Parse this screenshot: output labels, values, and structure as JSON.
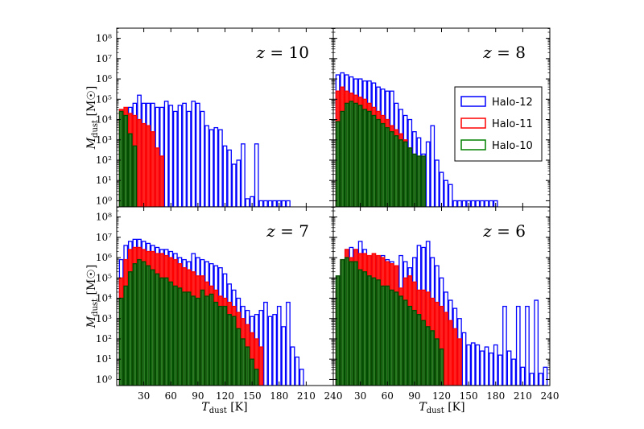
{
  "chart_data": {
    "type": "bar",
    "x_axis_label": "T_dust [K]",
    "y_axis_label": "M_dust [M☉]",
    "x_ticks": [
      "30",
      "60",
      "90",
      "120",
      "150",
      "180",
      "210",
      "240"
    ],
    "x_tick_values": [
      30,
      60,
      90,
      120,
      150,
      180,
      210,
      240
    ],
    "y_ticks": [
      "10⁰",
      "10¹",
      "10²",
      "10³",
      "10⁴",
      "10⁵",
      "10⁶",
      "10⁷",
      "10⁸"
    ],
    "y_scale": "log",
    "xlim": [
      0,
      240
    ],
    "ylim_log10": [
      -0.3,
      8.5
    ],
    "bin_width": 5,
    "legend": {
      "location": "right of upper-right panel",
      "entries": [
        {
          "name": "Halo-12",
          "color": "#0000ff"
        },
        {
          "name": "Halo-11",
          "color": "#ff0000"
        },
        {
          "name": "Halo-10",
          "color": "#008000"
        }
      ]
    },
    "panels": [
      {
        "label": "z = 10",
        "series": [
          {
            "name": "Halo-12",
            "color": "#0000ff",
            "x": [
              5,
              10,
              15,
              20,
              25,
              30,
              35,
              40,
              45,
              50,
              55,
              60,
              65,
              70,
              75,
              80,
              85,
              90,
              95,
              100,
              105,
              110,
              115,
              120,
              125,
              130,
              135,
              140,
              145,
              150,
              155,
              160,
              165,
              170,
              175,
              180,
              185,
              190
            ],
            "log10_mass": [
              3.5,
              4.3,
              4.6,
              4.8,
              5.2,
              4.8,
              4.8,
              4.8,
              4.6,
              4.6,
              4.9,
              4.7,
              4.4,
              4.7,
              4.8,
              4.4,
              4.9,
              4.8,
              4.4,
              3.7,
              3.5,
              3.6,
              3.5,
              2.7,
              2.5,
              1.8,
              2.0,
              2.8,
              0.1,
              0.2,
              2.8,
              0,
              0,
              0,
              0,
              0,
              0,
              0
            ]
          },
          {
            "name": "Halo-11",
            "color": "#ff0000",
            "x": [
              5,
              10,
              15,
              20,
              25,
              30,
              35,
              40,
              45,
              50
            ],
            "log10_mass": [
              4.5,
              4.6,
              4.3,
              4.2,
              4.0,
              3.8,
              3.7,
              3.4,
              2.6,
              2.2
            ]
          },
          {
            "name": "Halo-10",
            "color": "#008000",
            "x": [
              5,
              10,
              15,
              20
            ],
            "log10_mass": [
              4.4,
              4.2,
              3.3,
              2.7
            ]
          }
        ]
      },
      {
        "label": "z = 8",
        "series": [
          {
            "name": "Halo-12",
            "color": "#0000ff",
            "x": [
              5,
              10,
              15,
              20,
              25,
              30,
              35,
              40,
              45,
              50,
              55,
              60,
              65,
              70,
              75,
              80,
              85,
              90,
              95,
              100,
              105,
              110,
              115,
              120,
              125,
              130,
              135,
              140,
              145,
              150,
              155,
              160,
              165,
              170,
              175,
              180
            ],
            "log10_mass": [
              6.2,
              6.3,
              6.2,
              6.1,
              6.0,
              6.0,
              5.9,
              5.9,
              5.8,
              5.6,
              5.5,
              5.4,
              5.4,
              4.8,
              4.5,
              4.2,
              4.0,
              3.4,
              3.1,
              2.3,
              2.9,
              3.7,
              2.0,
              1.4,
              1.0,
              0.8,
              0,
              0,
              0,
              0,
              0,
              0,
              0,
              0,
              0,
              0
            ]
          },
          {
            "name": "Halo-11",
            "color": "#ff0000",
            "x": [
              5,
              10,
              15,
              20,
              25,
              30,
              35,
              40,
              45,
              50,
              55,
              60,
              65,
              70,
              75,
              80,
              85,
              90
            ],
            "log10_mass": [
              5.4,
              5.6,
              5.4,
              5.3,
              5.2,
              5.1,
              5.0,
              4.8,
              4.6,
              4.4,
              4.2,
              4.0,
              3.7,
              3.5,
              3.3,
              3.0,
              2.6,
              2.0
            ]
          },
          {
            "name": "Halo-10",
            "color": "#008000",
            "x": [
              5,
              10,
              15,
              20,
              25,
              30,
              35,
              40,
              45,
              50,
              55,
              60,
              65,
              70,
              75,
              80,
              85,
              90,
              95,
              100
            ],
            "log10_mass": [
              3.9,
              4.4,
              4.8,
              4.9,
              4.8,
              4.7,
              4.5,
              4.4,
              4.2,
              4.0,
              3.8,
              3.6,
              3.4,
              3.2,
              3.0,
              2.9,
              2.6,
              2.3,
              2.2,
              2.2
            ]
          }
        ]
      },
      {
        "label": "z = 7",
        "series": [
          {
            "name": "Halo-12",
            "color": "#0000ff",
            "x": [
              5,
              10,
              15,
              20,
              25,
              30,
              35,
              40,
              45,
              50,
              55,
              60,
              65,
              70,
              75,
              80,
              85,
              90,
              95,
              100,
              105,
              110,
              115,
              120,
              125,
              130,
              135,
              140,
              145,
              150,
              155,
              160,
              165,
              170,
              175,
              180,
              185,
              190,
              195,
              200,
              205
            ],
            "log10_mass": [
              5.9,
              6.6,
              6.8,
              6.9,
              6.9,
              6.8,
              6.7,
              6.6,
              6.5,
              6.4,
              6.4,
              6.3,
              6.2,
              6.0,
              5.9,
              5.8,
              6.2,
              6.0,
              5.9,
              5.8,
              5.7,
              5.6,
              5.5,
              5.2,
              4.7,
              4.4,
              4.0,
              3.6,
              3.4,
              3.1,
              3.2,
              3.4,
              3.8,
              3.1,
              3.2,
              3.6,
              2.6,
              3.8,
              1.6,
              1.1,
              0.5
            ]
          },
          {
            "name": "Halo-11",
            "color": "#ff0000",
            "x": [
              5,
              10,
              15,
              20,
              25,
              30,
              35,
              40,
              45,
              50,
              55,
              60,
              65,
              70,
              75,
              80,
              85,
              90,
              95,
              100,
              105,
              110,
              115,
              120,
              125,
              130,
              135,
              140,
              145,
              150,
              155,
              160
            ],
            "log10_mass": [
              5.0,
              5.9,
              6.4,
              6.5,
              6.5,
              6.4,
              6.3,
              6.3,
              6.2,
              6.2,
              6.1,
              6.0,
              5.9,
              5.7,
              5.5,
              5.4,
              5.3,
              5.1,
              5.1,
              4.8,
              4.6,
              4.4,
              4.1,
              4.0,
              3.8,
              3.6,
              3.3,
              3.0,
              2.7,
              2.3,
              2.0,
              1.6
            ]
          },
          {
            "name": "Halo-10",
            "color": "#008000",
            "x": [
              5,
              10,
              15,
              20,
              25,
              30,
              35,
              40,
              45,
              50,
              55,
              60,
              65,
              70,
              75,
              80,
              85,
              90,
              95,
              100,
              105,
              110,
              115,
              120,
              125,
              130,
              135,
              140,
              145,
              150,
              155
            ],
            "log10_mass": [
              4.0,
              4.6,
              5.3,
              5.7,
              5.9,
              5.8,
              5.6,
              5.4,
              5.2,
              5.0,
              5.0,
              4.8,
              4.6,
              4.5,
              4.3,
              4.3,
              4.1,
              4.0,
              4.4,
              4.1,
              4.2,
              3.8,
              3.6,
              3.6,
              3.2,
              3.1,
              2.5,
              2.0,
              1.6,
              1.0,
              0.5
            ]
          }
        ]
      },
      {
        "label": "z = 6",
        "series": [
          {
            "name": "Halo-12",
            "color": "#0000ff",
            "x": [
              5,
              10,
              15,
              20,
              25,
              30,
              35,
              40,
              45,
              50,
              55,
              60,
              65,
              70,
              75,
              80,
              85,
              90,
              95,
              100,
              105,
              110,
              115,
              120,
              125,
              130,
              135,
              140,
              145,
              150,
              155,
              160,
              165,
              170,
              175,
              180,
              185,
              190,
              195,
              200,
              205,
              210,
              215,
              220,
              225,
              230,
              235
            ],
            "log10_mass": [
              4.4,
              5.8,
              6.4,
              6.5,
              6.4,
              6.8,
              6.4,
              6.0,
              6.1,
              6.0,
              6.1,
              5.9,
              5.8,
              5.6,
              6.1,
              5.8,
              5.5,
              6.0,
              6.6,
              6.5,
              6.8,
              6.0,
              5.6,
              5.0,
              4.3,
              3.9,
              3.5,
              3.0,
              2.3,
              1.7,
              1.8,
              1.7,
              1.4,
              1.6,
              1.3,
              1.7,
              1.2,
              3.6,
              1.4,
              1.0,
              3.6,
              0.6,
              3.6,
              0.3,
              3.9,
              0.3,
              0.6
            ]
          },
          {
            "name": "Halo-11",
            "color": "#ff0000",
            "x": [
              5,
              10,
              15,
              20,
              25,
              30,
              35,
              40,
              45,
              50,
              55,
              60,
              65,
              70,
              75,
              80,
              85,
              90,
              95,
              100,
              105,
              110,
              115,
              120,
              125,
              130,
              135,
              140
            ],
            "log10_mass": [
              4.4,
              5.9,
              6.4,
              6.0,
              6.4,
              6.2,
              6.2,
              6.1,
              6.2,
              6.1,
              6.0,
              5.8,
              5.7,
              5.6,
              4.5,
              5.0,
              5.1,
              4.8,
              4.4,
              4.4,
              4.3,
              4.0,
              3.8,
              3.6,
              3.3,
              2.9,
              2.5,
              2.0
            ]
          },
          {
            "name": "Halo-10",
            "color": "#008000",
            "x": [
              5,
              10,
              15,
              20,
              25,
              30,
              35,
              40,
              45,
              50,
              55,
              60,
              65,
              70,
              75,
              80,
              85,
              90,
              95,
              100,
              105,
              110,
              115,
              120
            ],
            "log10_mass": [
              5.1,
              5.9,
              6.0,
              5.8,
              5.8,
              5.4,
              5.3,
              5.1,
              5.0,
              4.9,
              4.6,
              4.6,
              4.4,
              4.3,
              4.1,
              3.9,
              3.6,
              3.4,
              3.2,
              2.9,
              2.6,
              2.4,
              2.0,
              1.5
            ]
          }
        ]
      }
    ]
  }
}
